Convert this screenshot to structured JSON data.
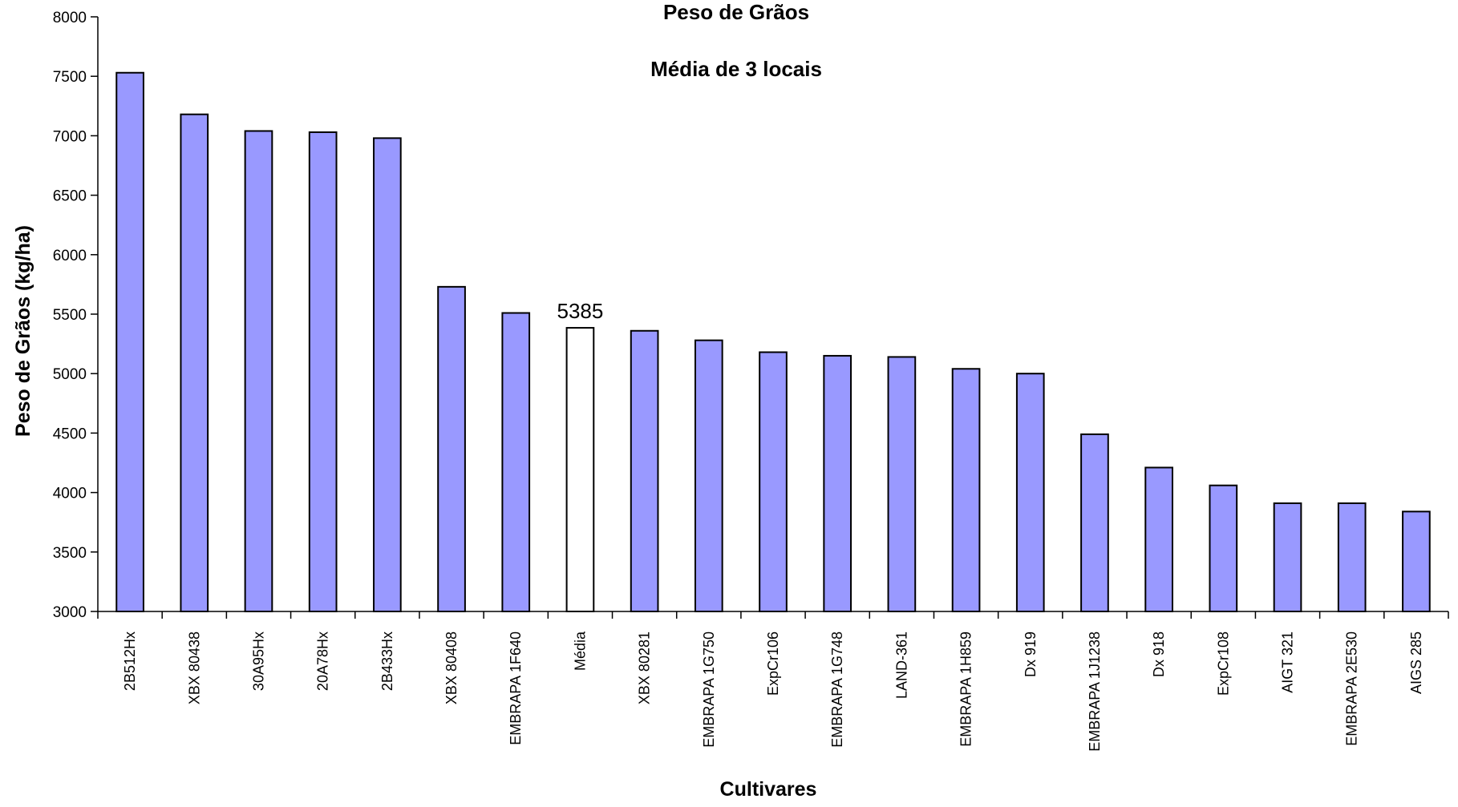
{
  "chart_data": {
    "type": "bar",
    "title": "Peso de Grãos",
    "subtitle": "Média de 3 locais",
    "xlabel": "Cultivares",
    "ylabel": "Peso de Grãos (kg/ha)",
    "ylim": [
      3000,
      8000
    ],
    "yticks": [
      3000,
      3500,
      4000,
      4500,
      5000,
      5500,
      6000,
      6500,
      7000,
      7500,
      8000
    ],
    "ytick_labels": [
      "3000",
      "3500",
      "4000",
      "4500",
      "5000",
      "5500",
      "6000",
      "6500",
      "7000",
      "7500",
      "8000"
    ],
    "grid": false,
    "categories": [
      "2B512Hx",
      "XBX 80438",
      "30A95Hx",
      "20A78Hx",
      "2B433Hx",
      "XBX 80408",
      "EMBRAPA 1F640",
      "Média",
      "XBX 80281",
      "EMBRAPA 1G750",
      "ExpCr106",
      "EMBRAPA 1G748",
      "LAND-361",
      "EMBRAPA 1H859",
      "Dx 919",
      "EMBRAPA 1J1238",
      "Dx 918",
      "ExpCr108",
      "AIGT 321",
      "EMBRAPA 2E530",
      "AIGS 285"
    ],
    "values": [
      7530,
      7180,
      7040,
      7030,
      6980,
      5730,
      5510,
      5385,
      5360,
      5280,
      5180,
      5150,
      5140,
      5040,
      5000,
      4490,
      4210,
      4060,
      3910,
      3910,
      3840
    ],
    "highlight_category": "Média",
    "data_labels": [
      {
        "category": "Média",
        "text": "5385"
      }
    ],
    "colors": {
      "bar": "#9999ff",
      "highlight": "#ffffff",
      "outline": "#000000"
    }
  }
}
